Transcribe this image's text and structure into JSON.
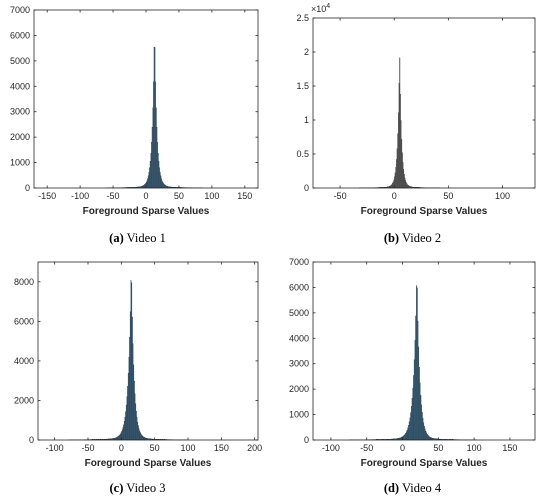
{
  "chart_data": [
    {
      "type": "bar",
      "subtype": "histogram",
      "caption_letter": "(a)",
      "caption_text": "Video 1",
      "xlabel": "Foreground Sparse Values",
      "ylabel": "",
      "xlim": [
        -170,
        170
      ],
      "ylim": [
        0,
        7000
      ],
      "xticks": [
        -150,
        -100,
        -50,
        0,
        50,
        100,
        150
      ],
      "yticks": [
        0,
        1000,
        2000,
        3000,
        4000,
        5000,
        6000,
        7000
      ],
      "y_exponent": "",
      "color": "#2f5f80",
      "bin_width": 1,
      "peak_center": 13,
      "peak_value": 6300,
      "spread_left": 3.5,
      "spread_right": 3.5
    },
    {
      "type": "bar",
      "subtype": "histogram",
      "caption_letter": "(b)",
      "caption_text": "Video 2",
      "xlabel": "Foreground Sparse Values",
      "ylabel": "",
      "xlim": [
        -75,
        130
      ],
      "ylim": [
        0,
        2.5
      ],
      "xticks": [
        -50,
        0,
        50,
        100
      ],
      "yticks": [
        0,
        0.5,
        1,
        1.5,
        2,
        2.5
      ],
      "y_exponent": "4",
      "color": "#595959",
      "bin_width": 0.6,
      "peak_center": 5,
      "peak_value": 2.0,
      "spread_left": 1.8,
      "spread_right": 1.8
    },
    {
      "type": "bar",
      "subtype": "histogram",
      "caption_letter": "(c)",
      "caption_text": "Video 3",
      "xlabel": "Foreground Sparse Values",
      "ylabel": "",
      "xlim": [
        -125,
        205
      ],
      "ylim": [
        0,
        9000
      ],
      "xticks": [
        -100,
        -50,
        0,
        50,
        100,
        150,
        200
      ],
      "yticks": [
        0,
        2000,
        4000,
        6000,
        8000
      ],
      "y_exponent": "",
      "color": "#2f5f80",
      "bin_width": 1,
      "peak_center": 15,
      "peak_value": 8900,
      "spread_left": 4.5,
      "spread_right": 4
    },
    {
      "type": "bar",
      "subtype": "histogram",
      "caption_letter": "(d)",
      "caption_text": "Video 4",
      "xlabel": "Foreground Sparse Values",
      "ylabel": "",
      "xlim": [
        -125,
        185
      ],
      "ylim": [
        0,
        7000
      ],
      "xticks": [
        -100,
        -50,
        0,
        50,
        100,
        150
      ],
      "yticks": [
        0,
        1000,
        2000,
        3000,
        4000,
        5000,
        6000,
        7000
      ],
      "y_exponent": "",
      "color": "#2f5f80",
      "bin_width": 1,
      "peak_center": 20,
      "peak_value": 6700,
      "spread_left": 4.5,
      "spread_right": 4
    }
  ]
}
